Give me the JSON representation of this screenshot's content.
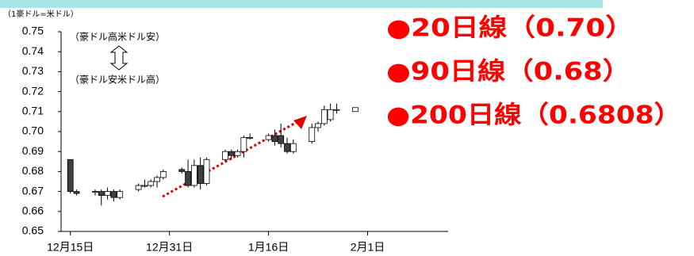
{
  "chart_data": {
    "type": "candlestick",
    "unit_label": "（1豪ドル=米ドル）",
    "annotations": [
      "（豪ドル高米ドル安）",
      "（豪ドル安米ドル高）"
    ],
    "headlines": [
      "●20日線（0.70）",
      "●90日線（0.68）",
      "●200日線（0.6808）"
    ],
    "x": [
      0,
      1,
      4,
      5,
      6,
      7,
      8,
      11,
      12,
      13,
      14,
      15,
      18,
      19,
      20,
      21,
      22,
      25,
      26,
      27,
      28,
      29,
      32,
      33,
      34,
      35,
      36,
      39,
      40,
      41,
      42,
      43,
      46
    ],
    "open": [
      0.686,
      0.67,
      0.67,
      0.67,
      0.668,
      0.67,
      0.667,
      0.671,
      0.673,
      0.673,
      0.675,
      0.677,
      0.681,
      0.68,
      0.673,
      0.683,
      0.674,
      0.686,
      0.69,
      0.688,
      0.69,
      0.697,
      0.696,
      0.698,
      0.698,
      0.694,
      0.69,
      0.695,
      0.702,
      0.704,
      0.706,
      0.711,
      0.71
    ],
    "high": [
      0.686,
      0.671,
      0.671,
      0.671,
      0.672,
      0.671,
      0.671,
      0.674,
      0.676,
      0.676,
      0.678,
      0.681,
      0.682,
      0.686,
      0.686,
      0.687,
      0.687,
      0.691,
      0.691,
      0.691,
      0.698,
      0.699,
      0.699,
      0.701,
      0.704,
      0.697,
      0.696,
      0.704,
      0.705,
      0.713,
      0.714,
      0.714,
      0.712
    ],
    "low": [
      0.669,
      0.668,
      0.668,
      0.663,
      0.666,
      0.665,
      0.666,
      0.67,
      0.672,
      0.672,
      0.672,
      0.676,
      0.679,
      0.672,
      0.672,
      0.671,
      0.673,
      0.685,
      0.686,
      0.687,
      0.687,
      0.696,
      0.695,
      0.693,
      0.692,
      0.689,
      0.689,
      0.694,
      0.7,
      0.703,
      0.705,
      0.709,
      0.71
    ],
    "close": [
      0.67,
      0.669,
      0.67,
      0.668,
      0.67,
      0.667,
      0.67,
      0.673,
      0.673,
      0.675,
      0.677,
      0.68,
      0.68,
      0.673,
      0.683,
      0.674,
      0.686,
      0.69,
      0.688,
      0.69,
      0.697,
      0.697,
      0.698,
      0.695,
      0.694,
      0.69,
      0.694,
      0.702,
      0.704,
      0.711,
      0.711,
      0.711,
      0.712
    ],
    "up_color": "#ffffff",
    "down_color": "#404040",
    "xlim": [
      -1.5,
      61
    ],
    "xticks": [
      {
        "value": 0,
        "label": "12月15日"
      },
      {
        "value": 16,
        "label": "12月31日"
      },
      {
        "value": 32,
        "label": "1月16日"
      },
      {
        "value": 48,
        "label": "2月1日"
      }
    ],
    "ylim": [
      0.65,
      0.75
    ],
    "yticks": [
      0.75,
      0.74,
      0.73,
      0.72,
      0.71,
      0.7,
      0.69,
      0.68,
      0.67,
      0.66,
      0.65
    ],
    "ytick_labels": [
      "0.75",
      "0.74",
      "0.73",
      "0.72",
      "0.71",
      "0.70",
      "0.69",
      "0.68",
      "0.67",
      "0.66",
      "0.65"
    ]
  }
}
